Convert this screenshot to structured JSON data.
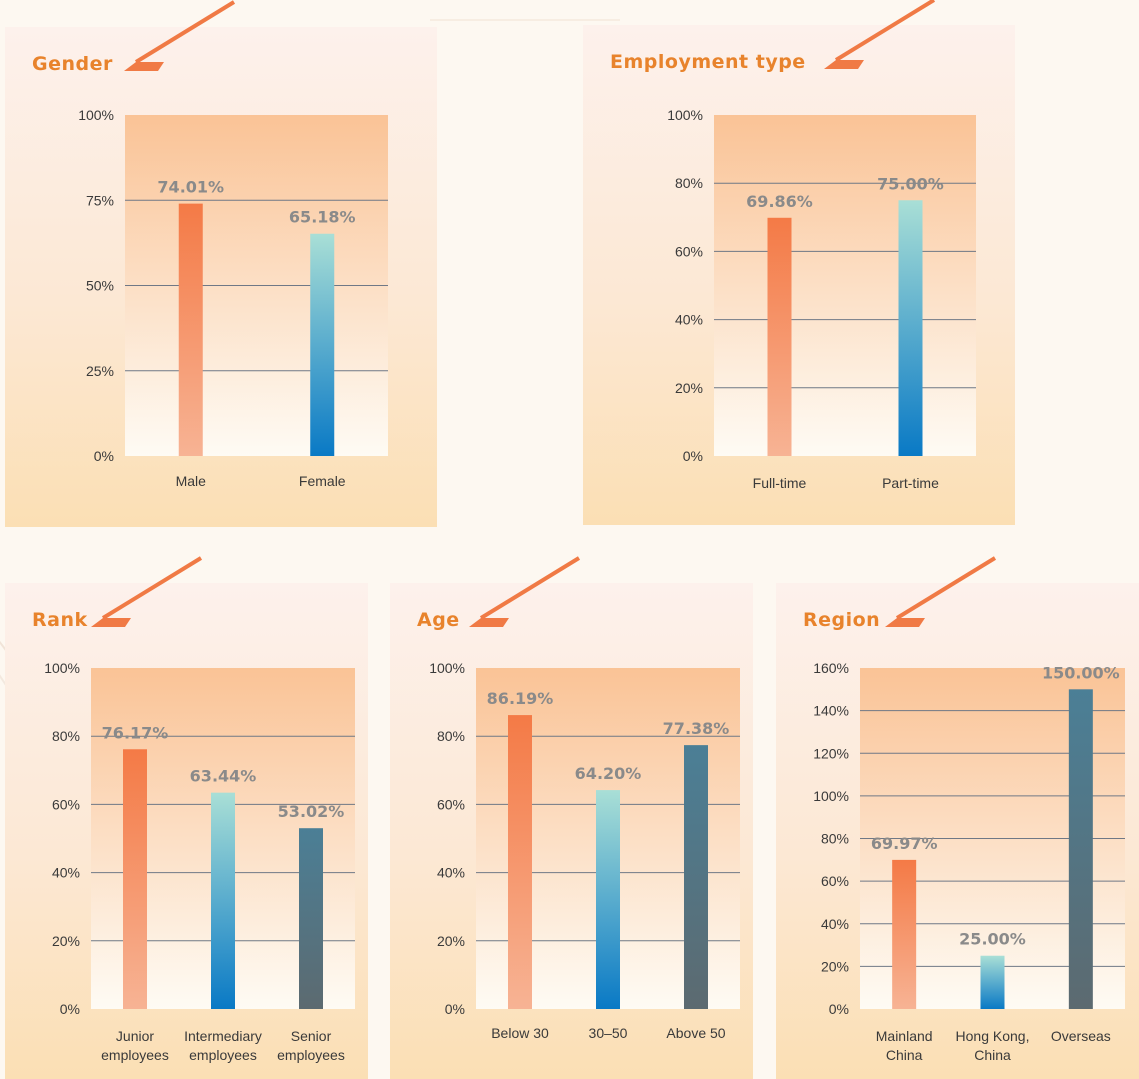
{
  "colors": {
    "title": "#e8832c",
    "accent_slash": "#f07a45",
    "plot_top": "#fac396",
    "plot_bottom": "#fefbf4",
    "gridline": "#6f7886",
    "value_label": "#8a8a8a",
    "bar_orange_top": "#f47a46",
    "bar_orange_bottom": "#f7b394",
    "bar_blue_top": "#a9dfd6",
    "bar_blue_bottom": "#0979c5",
    "bar_slate_top": "#4b7f96",
    "bar_slate_bottom": "#5c6a70"
  },
  "chart_data": [
    {
      "id": "gender",
      "type": "bar",
      "title": "Gender",
      "categories": [
        "Male",
        "Female"
      ],
      "values": [
        74.01,
        65.18
      ],
      "value_labels": [
        "74.01%",
        "65.18%"
      ],
      "bar_styles": [
        "orange",
        "blue"
      ],
      "ylim": [
        0,
        100
      ],
      "yticks": [
        0,
        25,
        50,
        75,
        100
      ],
      "ytick_labels": [
        "0%",
        "25%",
        "50%",
        "75%",
        "100%"
      ],
      "grid": true
    },
    {
      "id": "employment",
      "type": "bar",
      "title": "Employment type",
      "categories": [
        "Full-time",
        "Part-time"
      ],
      "values": [
        69.86,
        75.0
      ],
      "value_labels": [
        "69.86%",
        "75.00%"
      ],
      "bar_styles": [
        "orange",
        "blue"
      ],
      "ylim": [
        0,
        100
      ],
      "yticks": [
        0,
        20,
        40,
        60,
        80,
        100
      ],
      "ytick_labels": [
        "0%",
        "20%",
        "40%",
        "60%",
        "80%",
        "100%"
      ],
      "grid": true
    },
    {
      "id": "rank",
      "type": "bar",
      "title": "Rank",
      "categories": [
        [
          "Junior",
          "employees"
        ],
        [
          "Intermediary",
          "employees"
        ],
        [
          "Senior",
          "employees"
        ]
      ],
      "values": [
        76.17,
        63.44,
        53.02
      ],
      "value_labels": [
        "76.17%",
        "63.44%",
        "53.02%"
      ],
      "bar_styles": [
        "orange",
        "blue",
        "slate"
      ],
      "ylim": [
        0,
        100
      ],
      "yticks": [
        0,
        20,
        40,
        60,
        80,
        100
      ],
      "ytick_labels": [
        "0%",
        "20%",
        "40%",
        "60%",
        "80%",
        "100%"
      ],
      "grid": true
    },
    {
      "id": "age",
      "type": "bar",
      "title": "Age",
      "categories": [
        "Below 30",
        "30–50",
        "Above 50"
      ],
      "values": [
        86.19,
        64.2,
        77.38
      ],
      "value_labels": [
        "86.19%",
        "64.20%",
        "77.38%"
      ],
      "bar_styles": [
        "orange",
        "blue",
        "slate"
      ],
      "ylim": [
        0,
        100
      ],
      "yticks": [
        0,
        20,
        40,
        60,
        80,
        100
      ],
      "ytick_labels": [
        "0%",
        "20%",
        "40%",
        "60%",
        "80%",
        "100%"
      ],
      "grid": true
    },
    {
      "id": "region",
      "type": "bar",
      "title": "Region",
      "categories": [
        [
          "Mainland",
          "China"
        ],
        [
          "Hong Kong,",
          "China"
        ],
        [
          "Overseas"
        ]
      ],
      "values": [
        69.97,
        25.0,
        150.0
      ],
      "value_labels": [
        "69.97%",
        "25.00%",
        "150.00%"
      ],
      "bar_styles": [
        "orange",
        "blue",
        "slate"
      ],
      "ylim": [
        0,
        160
      ],
      "yticks": [
        0,
        20,
        40,
        60,
        80,
        100,
        120,
        140,
        160
      ],
      "ytick_labels": [
        "0%",
        "20%",
        "40%",
        "60%",
        "80%",
        "100%",
        "120%",
        "140%",
        "160%"
      ],
      "grid": true
    }
  ]
}
